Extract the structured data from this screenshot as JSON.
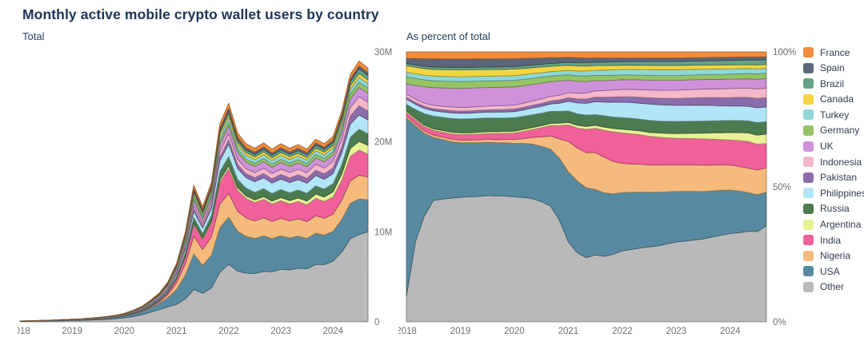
{
  "title": "Monthly active mobile crypto wallet users by country",
  "chart_data": {
    "type": "area",
    "stacked": true,
    "legend_position": "right",
    "stack_order_note": "stacked bottom-to-top in reverse legend order: Other at bottom, France on top",
    "x_ticks": [
      "2018",
      "2019",
      "2020",
      "2021",
      "2022",
      "2023",
      "2024"
    ],
    "ylim_millions": [
      0,
      30
    ],
    "ylim_percent": [
      0,
      100
    ],
    "unit": "monthly active users (millions); right view shows share of total in %",
    "views": [
      {
        "id": "total-chart",
        "title": "Total",
        "mode": "absolute",
        "y_ticks": [
          {
            "value": 0,
            "label": "0"
          },
          {
            "value": 10,
            "label": "10M"
          },
          {
            "value": 20,
            "label": "20M"
          },
          {
            "value": 30,
            "label": "30M"
          }
        ]
      },
      {
        "id": "percent-chart",
        "title": "As percent of total",
        "mode": "percent",
        "y_ticks": [
          {
            "value": 0,
            "label": "0%"
          },
          {
            "value": 50,
            "label": "50%"
          },
          {
            "value": 100,
            "label": "100%"
          }
        ]
      }
    ],
    "x": [
      2018,
      2018.17,
      2018.33,
      2018.5,
      2018.67,
      2018.83,
      2019,
      2019.17,
      2019.33,
      2019.5,
      2019.67,
      2019.83,
      2020,
      2020.17,
      2020.33,
      2020.5,
      2020.67,
      2020.83,
      2021,
      2021.17,
      2021.33,
      2021.5,
      2021.67,
      2021.83,
      2022,
      2022.17,
      2022.33,
      2022.5,
      2022.67,
      2022.83,
      2023,
      2023.17,
      2023.33,
      2023.5,
      2023.67,
      2023.83,
      2024,
      2024.17,
      2024.33,
      2024.5,
      2024.67
    ],
    "totals_millions": [
      0.1,
      0.12,
      0.15,
      0.18,
      0.22,
      0.26,
      0.3,
      0.35,
      0.42,
      0.5,
      0.6,
      0.75,
      0.95,
      1.3,
      1.7,
      2.4,
      3.2,
      4.4,
      6.5,
      10,
      15.2,
      12.8,
      15.5,
      22,
      24.3,
      21,
      19.8,
      19.3,
      19.9,
      19.2,
      19.8,
      19.3,
      19.7,
      19.2,
      20.3,
      19.8,
      20.6,
      23.5,
      27.5,
      29,
      28.2
    ],
    "series": [
      {
        "name": "France",
        "color": "#f08c3d",
        "share_pct": [
          2.5,
          2.6,
          2.7,
          2.75,
          2.78,
          2.8,
          2.8,
          2.78,
          2.75,
          2.72,
          2.68,
          2.64,
          2.6,
          2.5,
          2.4,
          2.3,
          2.2,
          2.1,
          2.0,
          2.03,
          2.07,
          2.1,
          2.13,
          2.17,
          2.2,
          2.22,
          2.23,
          2.25,
          2.27,
          2.28,
          2.3,
          2.25,
          2.2,
          2.15,
          2.1,
          2.05,
          2.0,
          1.95,
          1.9,
          1.85,
          1.8
        ]
      },
      {
        "name": "Spain",
        "color": "#5b6678",
        "share_pct": [
          2.0,
          2.6,
          3.0,
          3.2,
          3.25,
          3.28,
          3.3,
          3.28,
          3.25,
          3.2,
          3.15,
          3.08,
          3.0,
          2.8,
          2.6,
          2.4,
          2.2,
          2.0,
          1.8,
          1.7,
          1.6,
          1.5,
          1.43,
          1.37,
          1.3,
          1.3,
          1.3,
          1.3,
          1.3,
          1.3,
          1.3,
          1.28,
          1.27,
          1.25,
          1.23,
          1.22,
          1.2,
          1.18,
          1.15,
          1.13,
          1.1
        ]
      },
      {
        "name": "Brazil",
        "color": "#63a287",
        "share_pct": [
          0.9,
          0.9,
          0.92,
          0.93,
          0.95,
          0.97,
          0.98,
          0.98,
          0.99,
          1.0,
          1.0,
          1.0,
          1.0,
          1.02,
          1.03,
          1.05,
          1.07,
          1.08,
          1.1,
          1.13,
          1.17,
          1.2,
          1.23,
          1.27,
          1.3,
          1.33,
          1.37,
          1.4,
          1.43,
          1.47,
          1.5,
          1.53,
          1.57,
          1.6,
          1.63,
          1.67,
          1.7,
          1.73,
          1.75,
          1.78,
          1.8
        ]
      },
      {
        "name": "Canada",
        "color": "#f5d63f",
        "share_pct": [
          2.6,
          2.62,
          2.63,
          2.65,
          2.67,
          2.68,
          2.7,
          2.67,
          2.63,
          2.6,
          2.57,
          2.53,
          2.5,
          2.38,
          2.27,
          2.15,
          2.03,
          1.92,
          1.8,
          1.75,
          1.7,
          1.65,
          1.6,
          1.55,
          1.5,
          1.52,
          1.53,
          1.55,
          1.57,
          1.58,
          1.6,
          1.58,
          1.57,
          1.55,
          1.53,
          1.52,
          1.5,
          1.48,
          1.45,
          1.43,
          1.4
        ]
      },
      {
        "name": "Turkey",
        "color": "#8ed8d8",
        "share_pct": [
          1.8,
          1.82,
          1.83,
          1.85,
          1.87,
          1.88,
          1.9,
          1.88,
          1.87,
          1.85,
          1.83,
          1.82,
          1.8,
          1.77,
          1.73,
          1.7,
          1.67,
          1.63,
          1.6,
          1.67,
          1.73,
          1.8,
          1.87,
          1.93,
          2.0,
          2.03,
          2.07,
          2.1,
          2.13,
          2.17,
          2.2,
          2.17,
          2.13,
          2.1,
          2.07,
          2.03,
          2.0,
          1.95,
          1.9,
          1.85,
          1.8
        ]
      },
      {
        "name": "Germany",
        "color": "#94c464",
        "share_pct": [
          2.8,
          2.8,
          2.78,
          2.75,
          2.72,
          2.7,
          2.7,
          2.67,
          2.63,
          2.6,
          2.57,
          2.53,
          2.5,
          2.42,
          2.33,
          2.25,
          2.17,
          2.08,
          2.0,
          1.95,
          1.9,
          1.85,
          1.8,
          1.75,
          1.7,
          1.72,
          1.73,
          1.75,
          1.77,
          1.78,
          1.8,
          1.82,
          1.83,
          1.85,
          1.87,
          1.88,
          1.9,
          1.93,
          1.95,
          1.98,
          2.0
        ]
      },
      {
        "name": "UK",
        "color": "#cf91da",
        "share_pct": [
          4.0,
          5.5,
          6.5,
          7.0,
          7.2,
          7.4,
          7.5,
          7.5,
          7.4,
          7.3,
          7.2,
          7.1,
          7.0,
          6.7,
          6.4,
          6.0,
          5.6,
          5.3,
          4.5,
          4.2,
          3.9,
          3.6,
          3.5,
          3.5,
          3.5,
          3.5,
          3.6,
          3.6,
          3.65,
          3.7,
          3.7,
          3.7,
          3.65,
          3.6,
          3.6,
          3.6,
          3.6,
          3.55,
          3.5,
          3.5,
          3.5
        ]
      },
      {
        "name": "Indonesia",
        "color": "#f5b7ca",
        "share_pct": [
          1.2,
          1.23,
          1.27,
          1.3,
          1.33,
          1.37,
          1.4,
          1.42,
          1.43,
          1.45,
          1.47,
          1.48,
          1.5,
          1.55,
          1.6,
          1.65,
          1.7,
          1.75,
          1.8,
          1.93,
          2.07,
          2.2,
          2.33,
          2.47,
          2.6,
          2.68,
          2.77,
          2.85,
          2.93,
          3.02,
          3.1,
          3.15,
          3.2,
          3.25,
          3.3,
          3.35,
          3.4,
          3.43,
          3.45,
          3.48,
          3.5
        ]
      },
      {
        "name": "Pakistan",
        "color": "#8a6cad",
        "share_pct": [
          0.8,
          0.82,
          0.83,
          0.85,
          0.87,
          0.88,
          0.9,
          0.92,
          0.93,
          0.95,
          0.97,
          0.98,
          1.0,
          1.03,
          1.07,
          1.1,
          1.17,
          1.23,
          1.3,
          1.4,
          1.5,
          1.6,
          1.73,
          1.87,
          2.0,
          2.1,
          2.2,
          2.3,
          2.4,
          2.5,
          2.6,
          2.7,
          2.8,
          2.9,
          3.0,
          3.1,
          3.2,
          3.28,
          3.35,
          3.43,
          3.5
        ]
      },
      {
        "name": "Philippines",
        "color": "#b0e6f7",
        "share_pct": [
          2.0,
          2.0,
          2.1,
          2.1,
          2.1,
          2.2,
          2.2,
          2.2,
          2.25,
          2.25,
          2.3,
          2.3,
          2.3,
          2.4,
          2.5,
          2.6,
          2.8,
          3.0,
          3.5,
          3.8,
          4.0,
          4.5,
          4.8,
          5.2,
          5.5,
          5.7,
          5.8,
          6.0,
          6.0,
          6.0,
          6.0,
          6.0,
          6.0,
          6.0,
          5.8,
          5.6,
          5.5,
          5.5,
          5.4,
          5.4,
          5.4
        ]
      },
      {
        "name": "Russia",
        "color": "#4c7b50",
        "share_pct": [
          2.5,
          3.5,
          4.5,
          5.0,
          5.2,
          5.4,
          5.5,
          5.5,
          5.5,
          5.4,
          5.3,
          5.2,
          5.2,
          5.0,
          4.9,
          4.7,
          4.6,
          4.4,
          4.2,
          4.0,
          3.9,
          3.8,
          4.0,
          4.1,
          4.2,
          4.3,
          4.3,
          4.4,
          4.4,
          4.5,
          4.6,
          4.6,
          4.6,
          4.6,
          4.6,
          4.6,
          4.6,
          4.6,
          4.6,
          4.6,
          4.6
        ]
      },
      {
        "name": "Argentina",
        "color": "#e9f195",
        "share_pct": [
          0.6,
          0.6,
          0.6,
          0.6,
          0.65,
          0.65,
          0.65,
          0.65,
          0.7,
          0.7,
          0.7,
          0.7,
          0.7,
          0.75,
          0.75,
          0.8,
          0.8,
          0.85,
          0.9,
          0.95,
          1.0,
          1.05,
          1.1,
          1.2,
          1.3,
          1.35,
          1.4,
          1.45,
          1.55,
          1.65,
          1.8,
          1.9,
          2.05,
          2.2,
          2.4,
          2.6,
          2.8,
          3.0,
          3.2,
          3.3,
          3.5
        ]
      },
      {
        "name": "India",
        "color": "#f0609b",
        "share_pct": [
          1.5,
          1.6,
          1.8,
          1.9,
          2.0,
          2.1,
          2.2,
          2.2,
          2.3,
          2.3,
          2.4,
          2.4,
          2.5,
          2.8,
          3.0,
          3.5,
          4.0,
          5.0,
          6.0,
          7.0,
          8.0,
          8.5,
          9.5,
          10.5,
          11.0,
          11.0,
          10.8,
          10.5,
          10.3,
          10.1,
          10.0,
          10.0,
          10.0,
          10.0,
          9.8,
          9.6,
          9.5,
          9.8,
          10.0,
          9.5,
          9.0
        ]
      },
      {
        "name": "Nigeria",
        "color": "#f5bb7d",
        "share_pct": [
          0.8,
          0.8,
          0.9,
          0.9,
          0.9,
          1.0,
          1.0,
          1.0,
          1.1,
          1.1,
          1.2,
          1.3,
          1.5,
          1.8,
          2.5,
          3.5,
          5.0,
          7.0,
          11.0,
          11.5,
          12.0,
          13.0,
          12.5,
          11.5,
          10.5,
          10.3,
          10.2,
          10.0,
          10.0,
          10.0,
          10.0,
          10.0,
          10.0,
          10.0,
          9.8,
          9.6,
          9.5,
          9.3,
          9.2,
          9.0,
          9.0
        ]
      },
      {
        "name": "USA",
        "color": "#578aa0",
        "share_pct": [
          70,
          46,
          33,
          25,
          23.5,
          22.3,
          21.5,
          21.3,
          21.2,
          21.0,
          20.8,
          20.6,
          20.5,
          20.7,
          20.8,
          21.0,
          21.7,
          23.0,
          25.5,
          25.0,
          24.0,
          23.0,
          22.3,
          21.5,
          21.0,
          20.8,
          20.5,
          20.0,
          19.8,
          19.4,
          19.0,
          18.8,
          18.5,
          18.0,
          17.5,
          17.0,
          16.5,
          15.8,
          14.5,
          13.5,
          12.5
        ]
      },
      {
        "name": "Other",
        "color": "#b9b9bb",
        "share_pct": [
          10,
          32,
          42,
          48,
          48.4,
          48.7,
          49,
          49.2,
          49.3,
          49.5,
          49.0,
          48.5,
          48,
          47.5,
          47,
          45.5,
          44,
          38,
          29,
          24,
          22,
          23.5,
          23,
          24,
          25.5,
          26.3,
          27,
          27.5,
          28,
          29,
          30,
          30.5,
          31,
          31.5,
          32.2,
          32.8,
          33.5,
          33.8,
          34,
          33,
          35.5
        ]
      }
    ]
  }
}
